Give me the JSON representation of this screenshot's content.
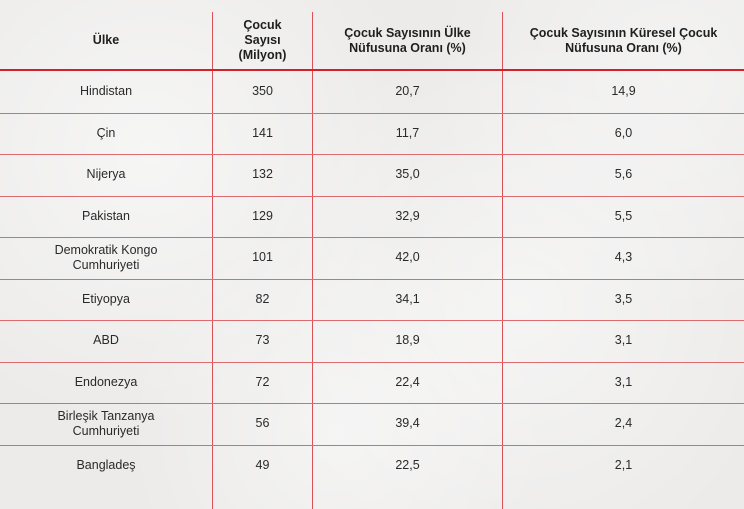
{
  "headers": {
    "country": "Ülke",
    "children": "Çocuk Sayısı (Milyon)",
    "ratio_country": "Çocuk Sayısının Ülke Nüfusuna Oranı (%)",
    "ratio_global": "Çocuk Sayısının Küresel Çocuk Nüfusuna Oranı (%)"
  },
  "rows": [
    {
      "country": "Hindistan",
      "children": "350",
      "ratio_country": "20,7",
      "ratio_global": "14,9"
    },
    {
      "country": "Çin",
      "children": "141",
      "ratio_country": "11,7",
      "ratio_global": "6,0"
    },
    {
      "country": "Nijerya",
      "children": "132",
      "ratio_country": "35,0",
      "ratio_global": "5,6"
    },
    {
      "country": "Pakistan",
      "children": "129",
      "ratio_country": "32,9",
      "ratio_global": "5,5"
    },
    {
      "country": "Demokratik Kongo Cumhuriyeti",
      "children": "101",
      "ratio_country": "42,0",
      "ratio_global": "4,3"
    },
    {
      "country": "Etiyopya",
      "children": "82",
      "ratio_country": "34,1",
      "ratio_global": "3,5"
    },
    {
      "country": "ABD",
      "children": "73",
      "ratio_country": "18,9",
      "ratio_global": "3,1"
    },
    {
      "country": "Endonezya",
      "children": "72",
      "ratio_country": "22,4",
      "ratio_global": "3,1"
    },
    {
      "country": "Birleşik Tanzanya Cumhuriyeti",
      "children": "56",
      "ratio_country": "39,4",
      "ratio_global": "2,4"
    },
    {
      "country": "Bangladeş",
      "children": "49",
      "ratio_country": "22,5",
      "ratio_global": "2,1"
    }
  ],
  "colors": {
    "accent": "#d3202a",
    "rule": "#de6a70"
  }
}
